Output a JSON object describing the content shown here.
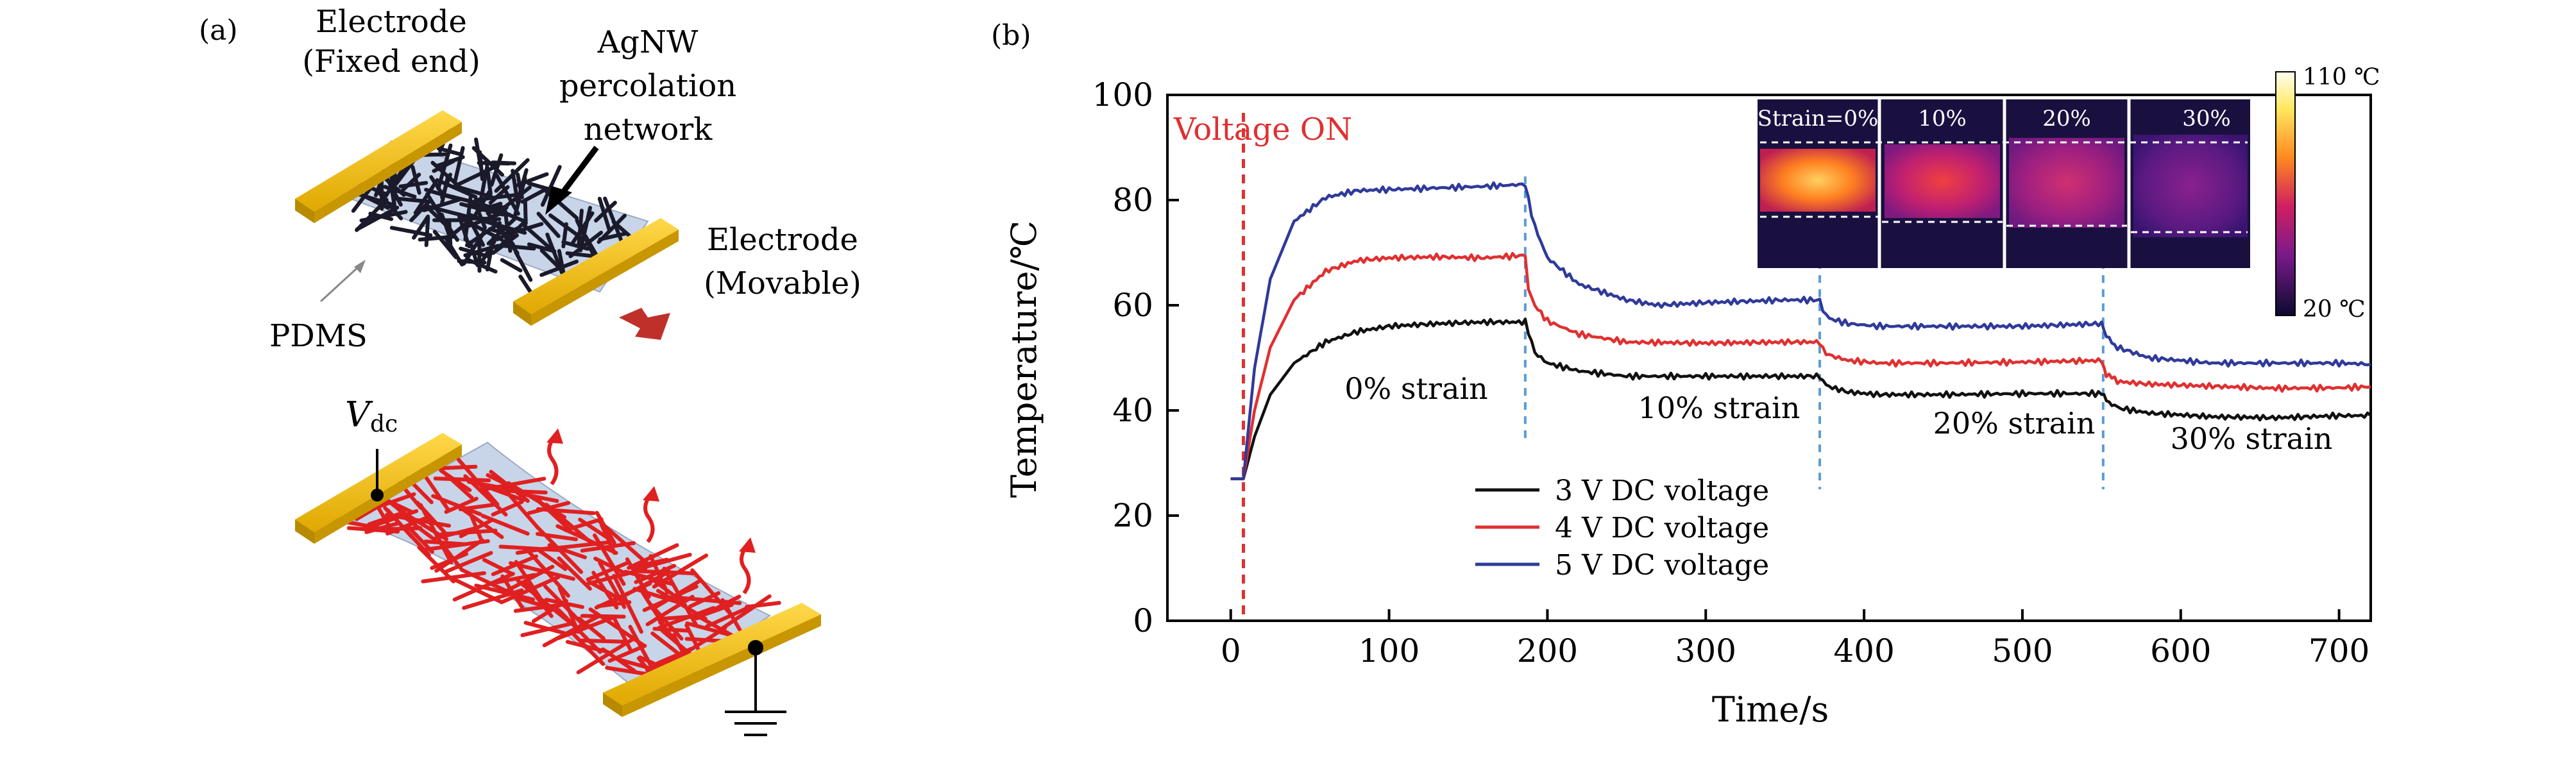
{
  "panel_a": {
    "label": "(a)",
    "electrode_fixed": [
      "Electrode",
      "(Fixed end)"
    ],
    "agnw": [
      "AgNW",
      "percolation",
      "network"
    ],
    "electrode_movable": [
      "Electrode",
      "(Movable)"
    ],
    "pdms": "PDMS",
    "vdc_main": "V",
    "vdc_sub": "dc"
  },
  "panel_b": {
    "label": "(b)",
    "voltage_on": "Voltage ON",
    "strain_labels": [
      "0% strain",
      "10% strain",
      "20% strain",
      "30% strain"
    ],
    "inset": {
      "frames": [
        "Strain=0%",
        "10%",
        "20%",
        "30%"
      ],
      "colorbar_max": "110 ℃",
      "colorbar_min": "20 ℃"
    }
  },
  "colors": {
    "v3": "#111111",
    "v4": "#e03030",
    "v5": "#2f3a9a",
    "red_dash": "#e03030",
    "blue_dash": "#5b9bd5",
    "electrode": "#e8b400",
    "wire_dark": "#1a1a2a",
    "wire_red": "#e02020",
    "pdms": "#c8d4e8"
  },
  "chart_data": {
    "type": "line",
    "xlabel": "Time/s",
    "ylabel": "Temperature/℃",
    "xlim": [
      -40,
      720
    ],
    "ylim": [
      0,
      100
    ],
    "xticks": [
      0,
      100,
      200,
      300,
      400,
      500,
      600,
      700
    ],
    "yticks": [
      0,
      20,
      40,
      60,
      80,
      100
    ],
    "legend_position": "bottom-center",
    "series": [
      {
        "name": "3 V DC voltage",
        "x": [
          0,
          8,
          15,
          25,
          40,
          60,
          80,
          100,
          130,
          160,
          186,
          188,
          192,
          200,
          220,
          250,
          300,
          350,
          372,
          374,
          378,
          390,
          410,
          450,
          500,
          550,
          553,
          560,
          580,
          620,
          660,
          700,
          720
        ],
        "y": [
          27,
          27,
          35,
          43,
          49,
          53,
          55,
          56,
          56.5,
          56.8,
          56.8,
          55,
          51,
          49,
          47.5,
          46.5,
          46.5,
          46.5,
          46.5,
          45.5,
          44.5,
          43.5,
          43,
          43,
          43.2,
          43.2,
          42,
          40.5,
          39.5,
          38.8,
          38.6,
          39,
          39
        ]
      },
      {
        "name": "4 V DC voltage",
        "x": [
          0,
          8,
          15,
          25,
          40,
          60,
          80,
          100,
          130,
          160,
          186,
          188,
          192,
          200,
          220,
          250,
          300,
          350,
          372,
          374,
          378,
          390,
          410,
          450,
          500,
          550,
          553,
          560,
          580,
          620,
          660,
          700,
          720
        ],
        "y": [
          27,
          27,
          40,
          52,
          61,
          66.5,
          68.5,
          69,
          69.2,
          69,
          69.5,
          63,
          60,
          57,
          54.5,
          53,
          52.8,
          53,
          53,
          51.5,
          50.5,
          49.5,
          49,
          49,
          49.2,
          49.5,
          47,
          45.5,
          45,
          44.6,
          44.2,
          44.3,
          44.5
        ]
      },
      {
        "name": "5 V DC voltage",
        "x": [
          0,
          8,
          15,
          25,
          40,
          60,
          80,
          100,
          130,
          160,
          186,
          188,
          192,
          200,
          220,
          250,
          270,
          300,
          350,
          372,
          374,
          378,
          390,
          410,
          450,
          500,
          550,
          553,
          560,
          580,
          620,
          660,
          700,
          720
        ],
        "y": [
          27,
          27,
          48,
          65,
          76,
          80.5,
          81.8,
          82,
          82.3,
          82.6,
          83,
          80,
          75,
          69,
          64,
          61,
          60,
          60.5,
          61,
          61,
          59,
          57.5,
          56.5,
          56,
          56,
          56,
          56.5,
          54,
          52,
          50,
          49,
          49,
          49,
          48.8
        ]
      }
    ],
    "annotations": [
      "Voltage ON",
      "0% strain",
      "10% strain",
      "20% strain",
      "30% strain"
    ],
    "vertical_markers": [
      {
        "x": 8,
        "style": "red-dash"
      },
      {
        "x": 186,
        "style": "blue-dash"
      },
      {
        "x": 372,
        "style": "blue-dash"
      },
      {
        "x": 551,
        "style": "blue-dash"
      }
    ]
  }
}
